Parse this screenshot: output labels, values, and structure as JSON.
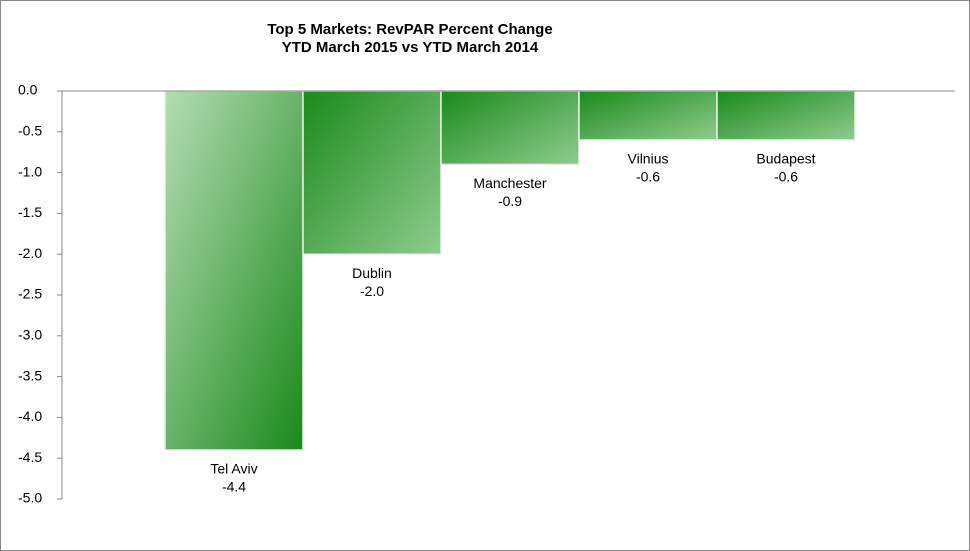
{
  "chart_data": {
    "type": "bar",
    "title": "Top 5 Markets: RevPAR Percent Change",
    "subtitle": "YTD March 2015 vs YTD March 2014",
    "categories": [
      "Tel Aviv",
      "Dublin",
      "Manchester",
      "Vilnius",
      "Budapest"
    ],
    "values": [
      -4.4,
      -2.0,
      -0.9,
      -0.6,
      -0.6
    ],
    "value_labels": [
      "-4.4",
      "-2.0",
      "-0.9",
      "-0.6",
      "-0.6"
    ],
    "color": "#1a8a1a",
    "ylim": [
      -5,
      0
    ],
    "yticks": [
      {
        "value": 0,
        "label": "0.0"
      },
      -0.5,
      {
        "value": -1,
        "label": "-1.0"
      },
      -1.5,
      {
        "value": -2,
        "label": "-2.0"
      },
      -2.5,
      {
        "value": -3,
        "label": "-3.0"
      },
      -3.5,
      {
        "value": -4,
        "label": "-4.0"
      },
      -4.5,
      {
        "value": -5,
        "label": "-5.0"
      }
    ],
    "grid": false
  }
}
